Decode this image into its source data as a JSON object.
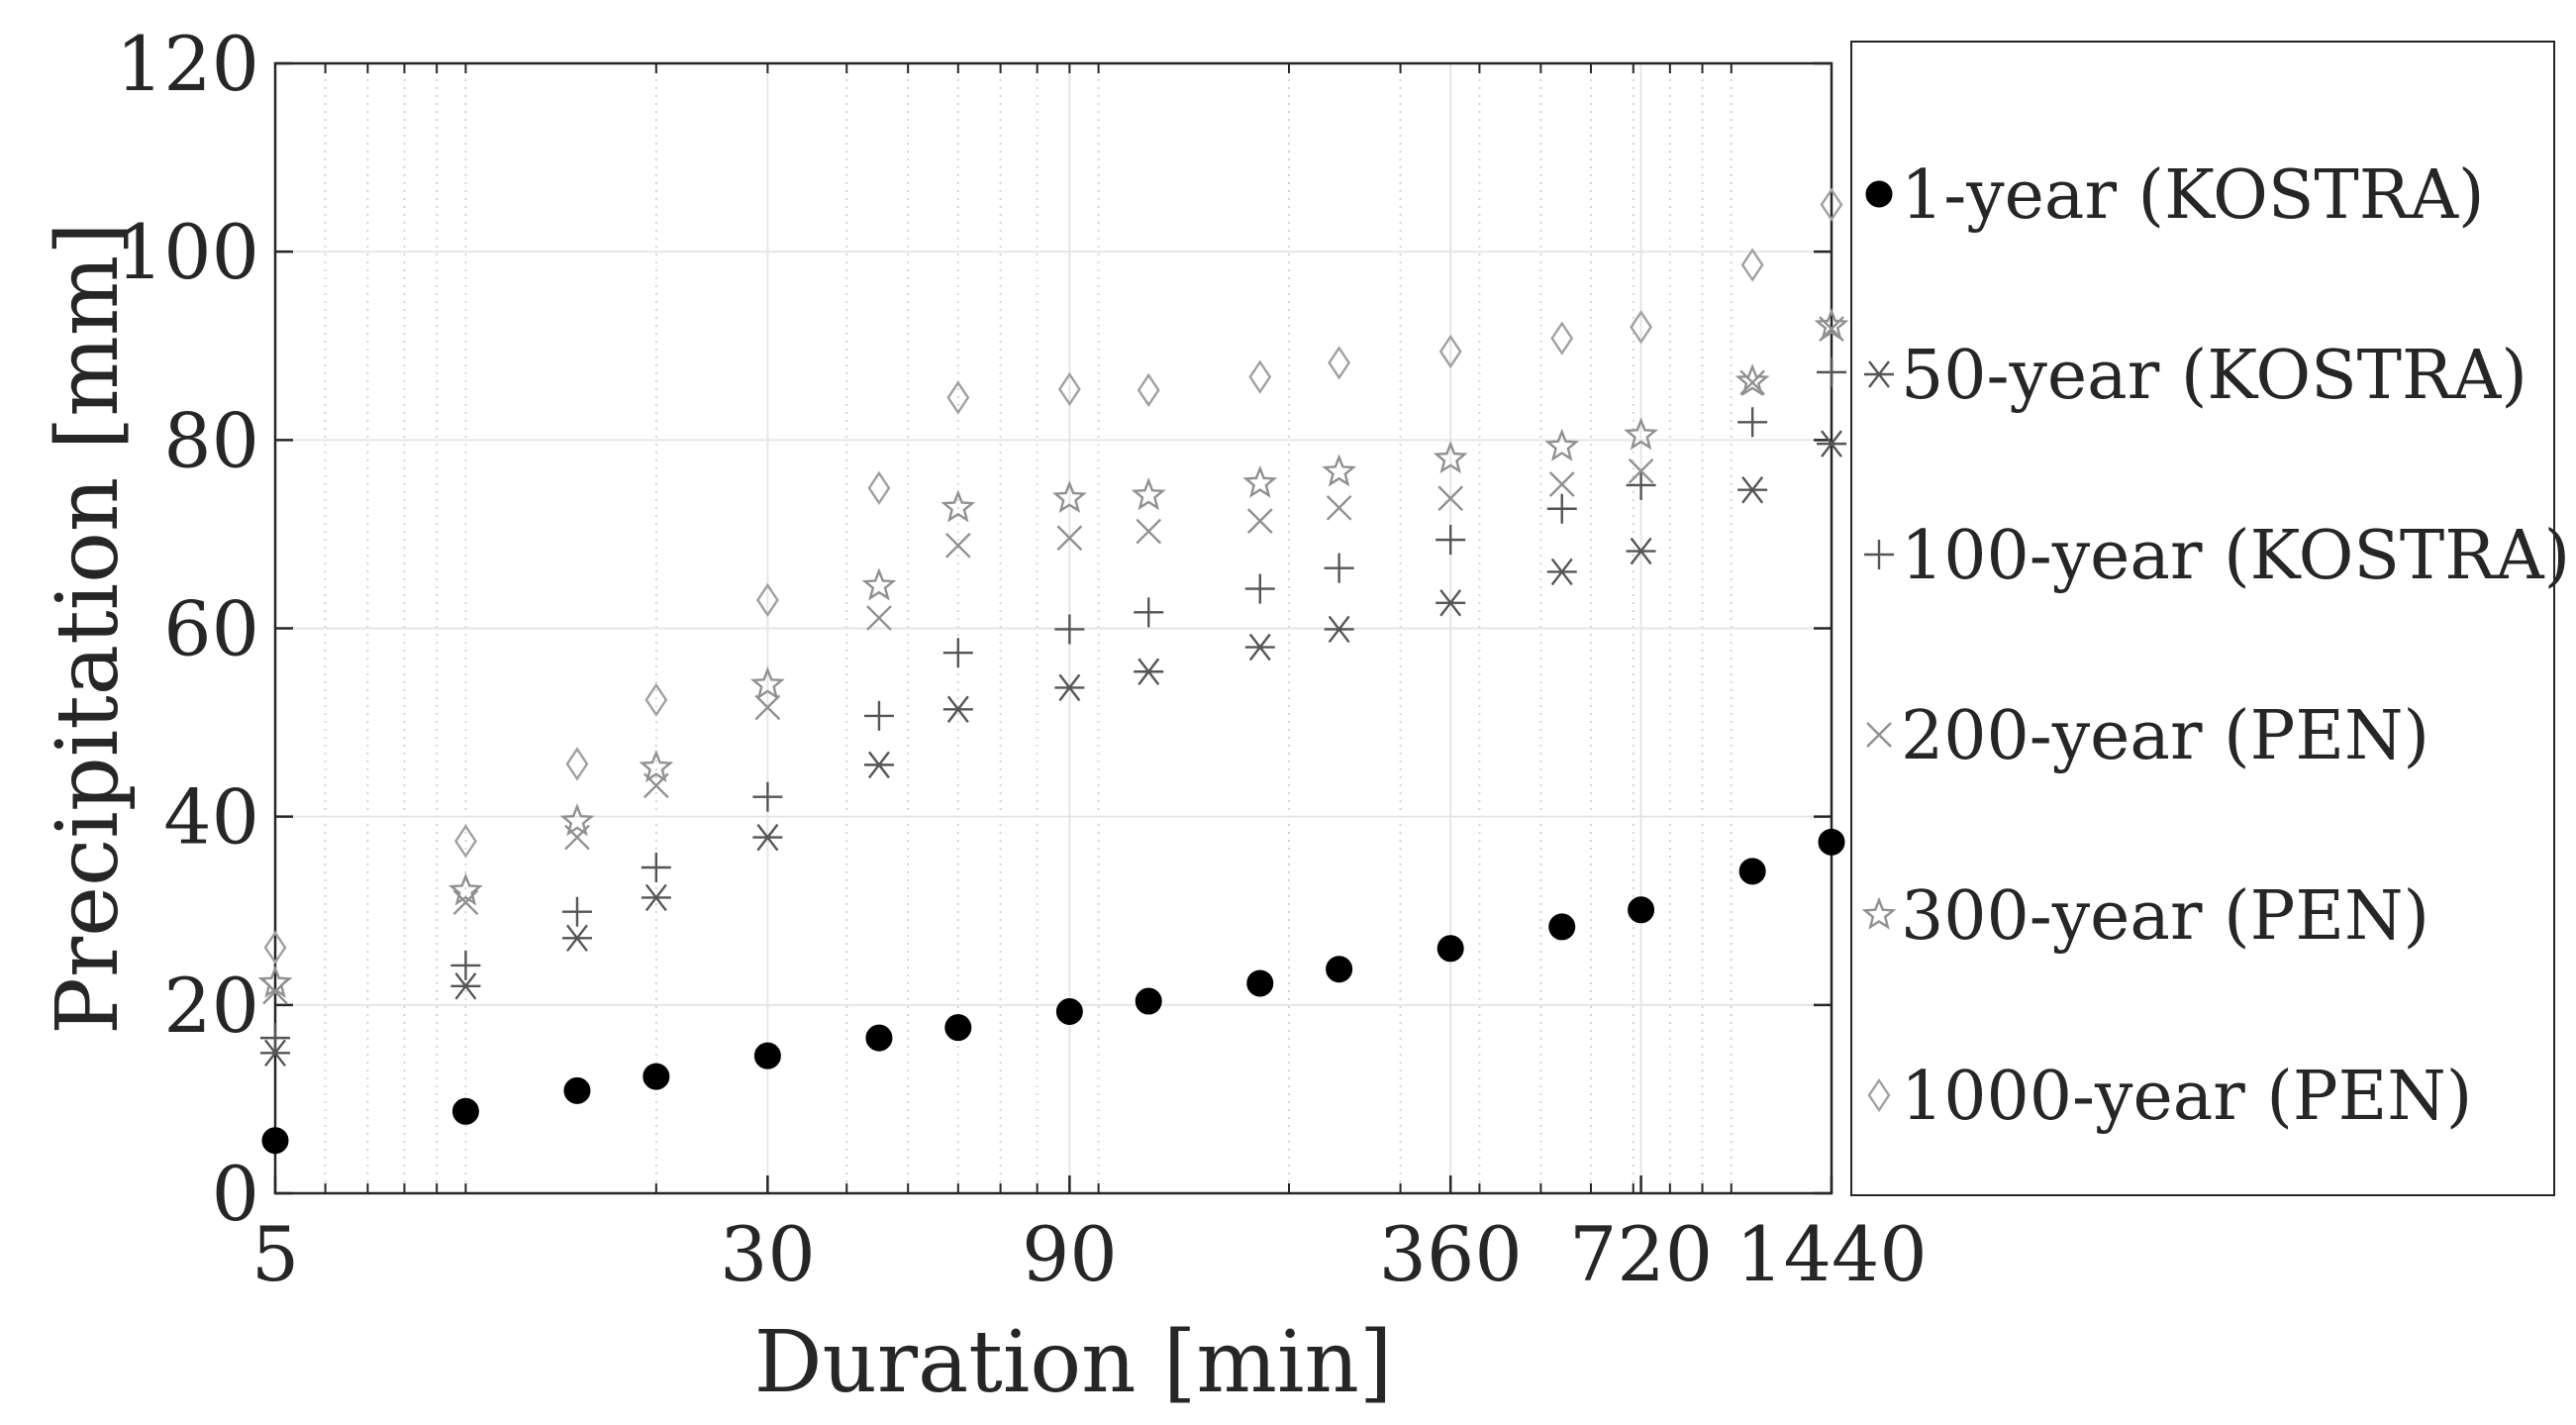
{
  "chart_data": {
    "type": "scatter",
    "xlabel": "Duration [min]",
    "ylabel": "Precipitation [mm]",
    "x_scale": "log",
    "xlim": [
      5,
      1440
    ],
    "ylim": [
      0,
      120
    ],
    "x_ticks": [
      5,
      30,
      90,
      360,
      720,
      1440
    ],
    "x_tick_labels": [
      "5",
      "30",
      "90",
      "360",
      "720",
      "1440"
    ],
    "y_ticks": [
      0,
      20,
      40,
      60,
      80,
      100,
      120
    ],
    "y_tick_labels": [
      "0",
      "20",
      "40",
      "60",
      "80",
      "100",
      "120"
    ],
    "grid": true,
    "legend_position": "right-outside",
    "x": [
      5,
      10,
      15,
      20,
      30,
      45,
      60,
      90,
      120,
      180,
      240,
      360,
      540,
      720,
      1080,
      1440
    ],
    "series": [
      {
        "name": "1-year (KOSTRA)",
        "marker": "filled-circle",
        "color": "#000000",
        "values": [
          5.6,
          8.7,
          10.9,
          12.4,
          14.6,
          16.5,
          17.6,
          19.3,
          20.4,
          22.3,
          23.8,
          26.0,
          28.3,
          30.1,
          34.2,
          37.3
        ]
      },
      {
        "name": "50-year (KOSTRA)",
        "marker": "asterisk",
        "color": "#555555",
        "values": [
          14.9,
          22.0,
          27.1,
          31.4,
          37.8,
          45.5,
          51.4,
          53.7,
          55.4,
          58.0,
          59.9,
          62.7,
          66.0,
          68.2,
          74.7,
          79.6
        ]
      },
      {
        "name": "100-year (KOSTRA)",
        "marker": "plus",
        "color": "#555555",
        "values": [
          16.5,
          24.2,
          29.9,
          34.6,
          42.1,
          50.7,
          57.4,
          59.9,
          61.7,
          64.2,
          66.4,
          69.4,
          72.7,
          75.2,
          81.9,
          87.2
        ]
      },
      {
        "name": "200-year (PEN)",
        "marker": "cross",
        "color": "#909090",
        "values": [
          21.4,
          30.9,
          37.8,
          43.3,
          51.6,
          61.1,
          68.8,
          69.6,
          70.3,
          71.4,
          72.8,
          73.8,
          75.3,
          76.7,
          86.1,
          91.8
        ]
      },
      {
        "name": "300-year (PEN)",
        "marker": "star",
        "color": "#909090",
        "values": [
          22.3,
          32.1,
          39.5,
          45.2,
          54.0,
          64.5,
          72.8,
          73.8,
          74.1,
          75.4,
          76.6,
          78.0,
          79.3,
          80.5,
          86.2,
          92.1
        ]
      },
      {
        "name": "1000-year (PEN)",
        "marker": "diamond",
        "color": "#a0a0a0",
        "values": [
          26.1,
          37.4,
          45.6,
          52.4,
          63.0,
          74.9,
          84.5,
          85.4,
          85.3,
          86.7,
          88.2,
          89.4,
          90.8,
          92.0,
          98.6,
          105.0
        ]
      }
    ]
  }
}
